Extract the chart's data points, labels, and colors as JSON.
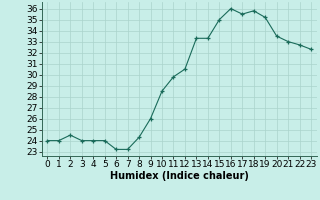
{
  "x": [
    0,
    1,
    2,
    3,
    4,
    5,
    6,
    7,
    8,
    9,
    10,
    11,
    12,
    13,
    14,
    15,
    16,
    17,
    18,
    19,
    20,
    21,
    22,
    23
  ],
  "y": [
    24.0,
    24.0,
    24.5,
    24.0,
    24.0,
    24.0,
    23.2,
    23.2,
    24.3,
    26.0,
    28.5,
    29.8,
    30.5,
    33.3,
    33.3,
    35.0,
    36.0,
    35.5,
    35.8,
    35.2,
    33.5,
    33.0,
    32.7,
    32.3
  ],
  "line_color": "#1a6b5a",
  "marker": "+",
  "bg_color": "#c8eee8",
  "grid_color": "#aad4cc",
  "xlabel": "Humidex (Indice chaleur)",
  "ylabel_ticks": [
    23,
    24,
    25,
    26,
    27,
    28,
    29,
    30,
    31,
    32,
    33,
    34,
    35,
    36
  ],
  "ylim": [
    22.6,
    36.6
  ],
  "xlim": [
    -0.5,
    23.5
  ],
  "xlabel_fontsize": 7,
  "tick_fontsize": 6.5
}
